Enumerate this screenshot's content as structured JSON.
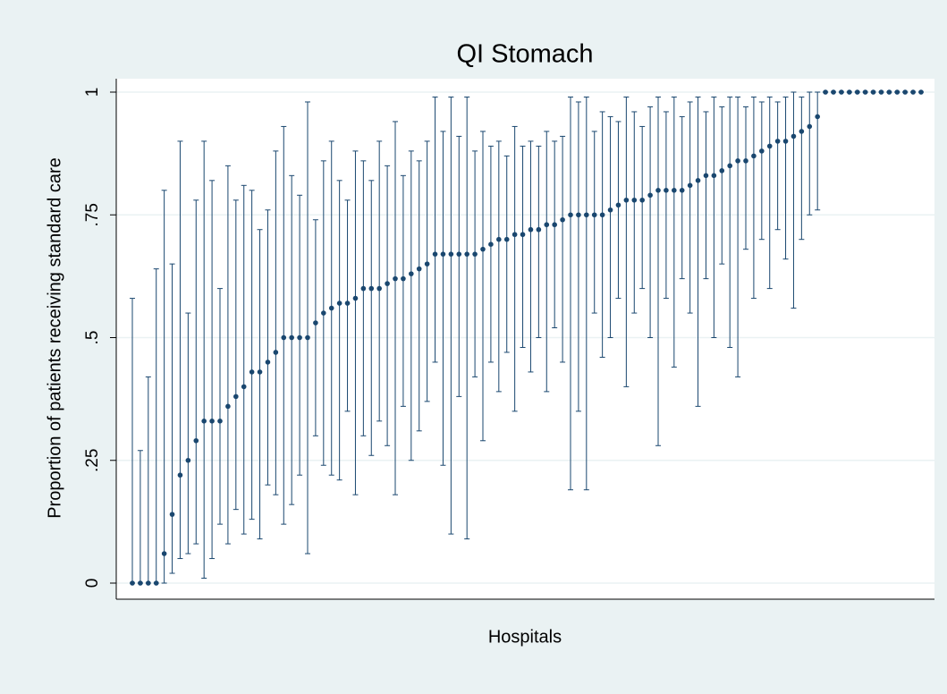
{
  "chart_data": {
    "type": "errorbar",
    "title": "QI Stomach",
    "x_label": "Hospitals",
    "y_label": "Proportion of patients receiving standard care",
    "color": "#1a476f",
    "grid": true,
    "ylim": [
      0,
      1
    ],
    "yticks": [
      0,
      {
        "value": 0.25,
        "label": ".25"
      },
      {
        "value": 0.5,
        "label": ".5"
      },
      {
        "value": 0.75,
        "label": ".75"
      },
      1
    ],
    "categories": [
      null,
      null,
      null,
      null,
      null,
      null,
      null,
      null,
      null,
      null,
      null,
      null,
      null,
      null,
      null,
      null,
      null,
      null,
      null,
      null,
      null,
      null,
      null,
      null,
      null,
      null,
      null,
      null,
      null,
      null,
      null,
      null,
      null,
      null,
      null,
      null,
      null,
      null,
      null,
      null,
      null,
      null,
      null,
      null,
      null,
      null,
      null,
      null,
      null,
      null,
      null,
      null,
      null,
      null,
      null,
      null,
      null,
      null,
      null,
      null,
      null,
      null,
      null,
      null,
      null,
      null,
      null,
      null,
      null,
      null,
      null,
      null,
      null,
      null,
      null,
      null,
      null,
      null,
      null,
      null,
      null,
      null,
      null,
      null,
      null,
      null,
      null,
      null,
      null,
      null,
      null,
      null,
      null,
      null,
      null,
      null,
      null,
      null,
      null,
      null
    ],
    "values": [
      0,
      0,
      0,
      0,
      0.06,
      0.14,
      0.22,
      0.25,
      0.29,
      0.33,
      0.33,
      0.33,
      0.36,
      0.38,
      0.4,
      0.43,
      0.43,
      0.45,
      0.47,
      0.5,
      0.5,
      0.5,
      0.5,
      0.53,
      0.55,
      0.56,
      0.57,
      0.57,
      0.58,
      0.6,
      0.6,
      0.6,
      0.61,
      0.62,
      0.62,
      0.63,
      0.64,
      0.65,
      0.67,
      0.67,
      0.67,
      0.67,
      0.67,
      0.67,
      0.68,
      0.69,
      0.7,
      0.7,
      0.71,
      0.71,
      0.72,
      0.72,
      0.73,
      0.73,
      0.74,
      0.75,
      0.75,
      0.75,
      0.75,
      0.75,
      0.76,
      0.77,
      0.78,
      0.78,
      0.78,
      0.79,
      0.8,
      0.8,
      0.8,
      0.8,
      0.81,
      0.82,
      0.83,
      0.83,
      0.84,
      0.85,
      0.86,
      0.86,
      0.87,
      0.88,
      0.89,
      0.9,
      0.9,
      0.91,
      0.92,
      0.93,
      0.95,
      1,
      1,
      1,
      1,
      1,
      1,
      1,
      1,
      1,
      1,
      1,
      1,
      1
    ],
    "ci_low": [
      0,
      0,
      0,
      0,
      0,
      0.02,
      0.05,
      0.06,
      0.08,
      0.01,
      0.05,
      0.12,
      0.08,
      0.15,
      0.1,
      0.13,
      0.09,
      0.2,
      0.18,
      0.12,
      0.16,
      0.22,
      0.06,
      0.3,
      0.24,
      0.22,
      0.21,
      0.35,
      0.18,
      0.3,
      0.26,
      0.33,
      0.28,
      0.18,
      0.36,
      0.25,
      0.31,
      0.37,
      0.45,
      0.24,
      0.1,
      0.38,
      0.09,
      0.42,
      0.29,
      0.45,
      0.39,
      0.47,
      0.35,
      0.48,
      0.43,
      0.5,
      0.39,
      0.52,
      0.45,
      0.19,
      0.35,
      0.19,
      0.55,
      0.46,
      0.5,
      0.58,
      0.4,
      0.55,
      0.6,
      0.5,
      0.28,
      0.58,
      0.44,
      0.62,
      0.55,
      0.36,
      0.62,
      0.5,
      0.65,
      0.48,
      0.42,
      0.68,
      0.58,
      0.7,
      0.6,
      0.72,
      0.66,
      0.56,
      0.7,
      0.75,
      0.76,
      1,
      1,
      1,
      1,
      1,
      1,
      1,
      1,
      1,
      1,
      1,
      1,
      1
    ],
    "ci_high": [
      0.58,
      0.27,
      0.42,
      0.64,
      0.8,
      0.65,
      0.9,
      0.55,
      0.78,
      0.9,
      0.82,
      0.6,
      0.85,
      0.78,
      0.81,
      0.8,
      0.72,
      0.76,
      0.88,
      0.93,
      0.83,
      0.79,
      0.98,
      0.74,
      0.86,
      0.9,
      0.82,
      0.78,
      0.88,
      0.86,
      0.82,
      0.9,
      0.85,
      0.94,
      0.83,
      0.88,
      0.86,
      0.9,
      0.99,
      0.92,
      0.99,
      0.91,
      0.99,
      0.88,
      0.92,
      0.89,
      0.9,
      0.87,
      0.93,
      0.89,
      0.9,
      0.89,
      0.92,
      0.9,
      0.91,
      0.99,
      0.98,
      0.99,
      0.92,
      0.96,
      0.95,
      0.94,
      0.99,
      0.96,
      0.93,
      0.97,
      0.99,
      0.96,
      0.99,
      0.95,
      0.98,
      0.99,
      0.96,
      0.99,
      0.97,
      0.99,
      0.99,
      0.97,
      0.99,
      0.98,
      0.99,
      0.98,
      0.99,
      1,
      0.99,
      1,
      1,
      1,
      1,
      1,
      1,
      1,
      1,
      1,
      1,
      1,
      1,
      1,
      1,
      1
    ]
  }
}
